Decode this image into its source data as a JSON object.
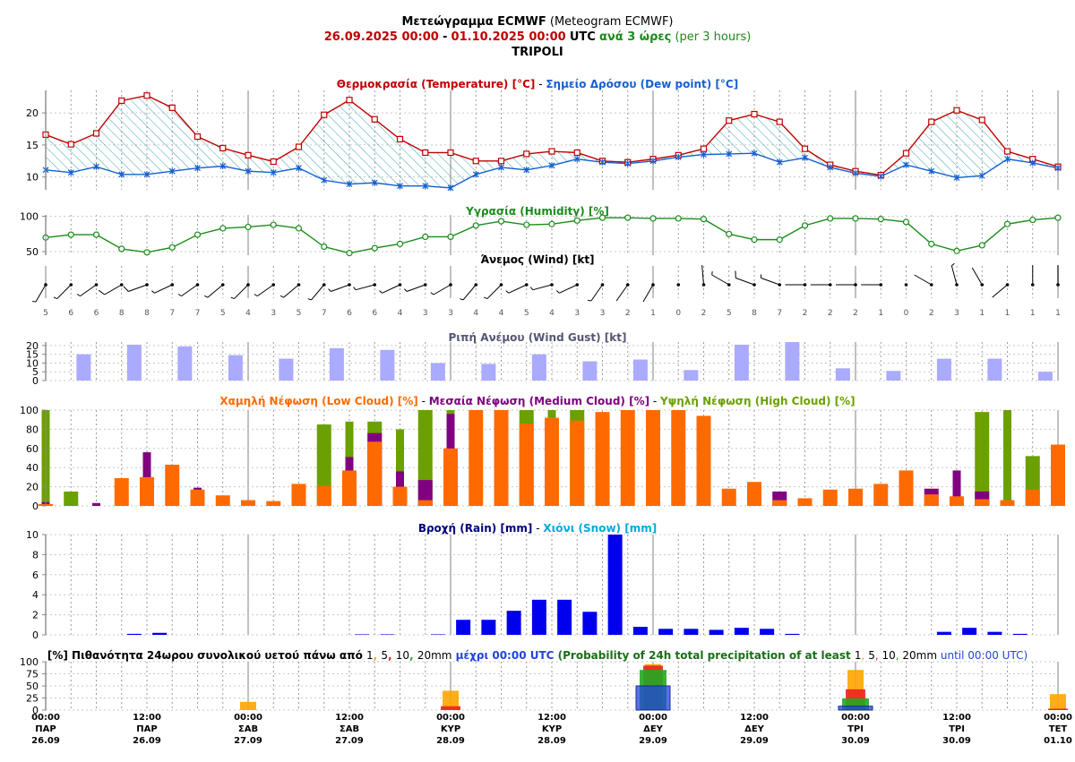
{
  "header": {
    "title_greek": "Μετεώγραμμα ECMWF",
    "title_en": "(Meteogram ECMWF)",
    "date_start": "26.09.2025 00:00",
    "date_sep": "-",
    "date_end": "01.10.2025 00:00",
    "utc": "UTC",
    "step_greek": "ανά 3 ώρες",
    "step_en": "(per 3 hours)",
    "location": "TRIPOLI"
  },
  "colors": {
    "temp": "#c00000",
    "dew": "#1560d0",
    "hum": "#1a8c1a",
    "gust": "#aaaaff",
    "low": "#ff6a00",
    "med": "#800080",
    "high": "#6aa000",
    "rain": "#0000ee",
    "snow": "#00aadd",
    "p1": "#ffa500",
    "p5": "#ee2222",
    "p10": "#22aa22",
    "p20": "#2244dd"
  },
  "chart_data": [
    {
      "type": "line",
      "title_parts": [
        "Θερμοκρασία (Temperature) [°C]",
        " - ",
        "Σημείο Δρόσου (Dew point) [°C]"
      ],
      "yticks": [
        10,
        15,
        20
      ],
      "ylim": [
        8,
        23.5
      ],
      "series": [
        {
          "name": "Θερμοκρασία (Temperature) [°C]",
          "values": [
            16.6,
            15.1,
            16.8,
            21.9,
            22.7,
            20.8,
            16.3,
            14.5,
            13.4,
            12.4,
            14.7,
            19.7,
            22.0,
            19.0,
            15.9,
            13.8,
            13.8,
            12.5,
            12.5,
            13.6,
            14.0,
            13.8,
            12.5,
            12.3,
            12.8,
            13.4,
            14.4,
            18.8,
            19.8,
            18.6,
            14.4,
            11.9,
            10.9,
            10.3,
            13.7,
            18.6,
            20.4,
            18.9,
            14.0,
            12.8,
            11.6
          ]
        },
        {
          "name": "Σημείο Δρόσου (Dew point) [°C]",
          "values": [
            11.1,
            10.7,
            11.6,
            10.4,
            10.4,
            10.9,
            11.4,
            11.7,
            10.9,
            10.7,
            11.4,
            9.5,
            8.9,
            9.1,
            8.6,
            8.6,
            8.3,
            10.4,
            11.5,
            11.1,
            11.8,
            12.8,
            12.3,
            12.1,
            12.5,
            13.1,
            13.5,
            13.6,
            13.7,
            12.3,
            13.0,
            11.5,
            10.6,
            10.1,
            11.9,
            10.9,
            9.9,
            10.2,
            12.8,
            12.2,
            11.4
          ]
        }
      ]
    },
    {
      "type": "line",
      "title": "Υγρασία (Humidity) [%]",
      "yticks": [
        50,
        100
      ],
      "ylim": [
        45,
        102
      ],
      "values": [
        70,
        74,
        74,
        54,
        49,
        56,
        74,
        83,
        85,
        88,
        83,
        57,
        48,
        55,
        61,
        71,
        71,
        87,
        93,
        88,
        89,
        94,
        98,
        98,
        97,
        97,
        96,
        75,
        67,
        67,
        87,
        97,
        97,
        96,
        92,
        61,
        51,
        59,
        89,
        95,
        98
      ]
    },
    {
      "type": "table",
      "title": "Άνεμος (Wind) [kt]",
      "speeds": [
        5,
        6,
        6,
        8,
        8,
        7,
        7,
        5,
        4,
        3,
        5,
        7,
        6,
        6,
        4,
        3,
        3,
        4,
        4,
        5,
        4,
        3,
        3,
        2,
        1,
        0,
        2,
        5,
        8,
        7,
        2,
        2,
        2,
        1,
        0,
        2,
        3,
        1,
        1,
        1,
        1
      ],
      "directions": [
        210,
        225,
        235,
        240,
        250,
        245,
        235,
        230,
        225,
        235,
        230,
        220,
        250,
        255,
        245,
        250,
        240,
        220,
        225,
        245,
        255,
        245,
        215,
        215,
        210,
        0,
        355,
        300,
        290,
        290,
        270,
        270,
        270,
        270,
        0,
        300,
        345,
        330,
        230,
        0,
        0
      ]
    },
    {
      "type": "bar",
      "title": "Ριπή Ανέμου (Wind Gust) [kt]",
      "yticks": [
        0,
        5,
        10,
        15,
        20
      ],
      "ylim": [
        0,
        22
      ],
      "values": [
        0,
        15,
        0,
        20.5,
        0,
        19.5,
        0,
        14.5,
        0,
        12.5,
        0,
        18.5,
        0,
        17.5,
        0,
        10,
        0,
        9.5,
        0,
        15,
        0,
        11,
        0,
        12,
        0,
        6,
        0,
        20.5,
        0,
        22,
        0,
        7,
        0,
        5.5,
        0,
        12.5,
        0,
        12.5,
        0,
        5
      ]
    },
    {
      "type": "bar",
      "title_parts": [
        "Χαμηλή Νέφωση (Low Cloud) [%]",
        " - ",
        "Μεσαία Νέφωση (Medium Cloud) [%]",
        " - ",
        "Υψηλή Νέφωση (High Cloud) [%]"
      ],
      "yticks": [
        0,
        20,
        40,
        60,
        80,
        100
      ],
      "ylim": [
        0,
        100
      ],
      "series": [
        {
          "name": "Χαμηλή Νέφωση (Low Cloud) [%]",
          "values": [
            2,
            0,
            0,
            29,
            30,
            43,
            17,
            11,
            6,
            5,
            23,
            21,
            37,
            67,
            20,
            6,
            60,
            100,
            100,
            86,
            92,
            89,
            98,
            100,
            100,
            100,
            94,
            18,
            25,
            6,
            8,
            17,
            18,
            23,
            37,
            12,
            10,
            7,
            6,
            17,
            64
          ]
        },
        {
          "name": "Μεσαία Νέφωση (Medium Cloud) [%]",
          "values": [
            4,
            0,
            3,
            0,
            56,
            0,
            19,
            0,
            0,
            0,
            0,
            0,
            51,
            76,
            36,
            27,
            96,
            0,
            0,
            0,
            0,
            0,
            0,
            0,
            0,
            0,
            0,
            0,
            0,
            15,
            0,
            0,
            0,
            0,
            0,
            18,
            37,
            15,
            0,
            0,
            0
          ]
        },
        {
          "name": "Υψηλή Νέφωση (High Cloud) [%]",
          "values": [
            100,
            15,
            0,
            0,
            0,
            0,
            0,
            0,
            0,
            0,
            0,
            85,
            88,
            88,
            80,
            100,
            100,
            0,
            100,
            100,
            100,
            100,
            0,
            0,
            0,
            0,
            0,
            0,
            0,
            0,
            0,
            0,
            0,
            0,
            0,
            0,
            0,
            98,
            100,
            52,
            0
          ]
        }
      ]
    },
    {
      "type": "bar",
      "title_parts": [
        "Βροχή (Rain) [mm]",
        " - ",
        "Χιόνι (Snow) [mm]"
      ],
      "yticks": [
        0,
        2,
        4,
        6,
        8,
        10
      ],
      "ylim": [
        0,
        10
      ],
      "series": [
        {
          "name": "Βροχή (Rain) [mm]",
          "values": [
            0,
            0,
            0,
            0.1,
            0.2,
            0,
            0,
            0,
            0,
            0,
            0,
            0,
            0.05,
            0.05,
            0,
            0.05,
            1.5,
            1.5,
            2.4,
            3.5,
            3.5,
            2.3,
            10,
            0.8,
            0.6,
            0.6,
            0.5,
            0.7,
            0.6,
            0.1,
            0,
            0,
            0,
            0,
            0,
            0.3,
            0.7,
            0.3,
            0.1,
            0
          ]
        },
        {
          "name": "Χιόνι (Snow) [mm]",
          "values": []
        }
      ]
    },
    {
      "type": "bar",
      "title_parts": [
        "[%] Πιθανότητα 24ωρου συνολικού υετού πάνω από ",
        "1",
        ", ",
        "5",
        ", ",
        "10",
        ", ",
        "20mm",
        " μέχρι 00:00 UTC",
        " (Probability of 24h total precipitation of at least ",
        "1",
        ", ",
        "5",
        ", ",
        "10",
        ", ",
        "20mm",
        " until 00:00 UTC)"
      ],
      "yticks": [
        0,
        25,
        50,
        75,
        100
      ],
      "ylim": [
        0,
        100
      ],
      "categories": [
        "27.09",
        "28.09",
        "29.09",
        "30.09",
        "01.10"
      ],
      "series": [
        {
          "name": "1",
          "values": [
            17,
            40,
            95,
            83,
            33
          ]
        },
        {
          "name": "5",
          "values": [
            0,
            8,
            92,
            43,
            3
          ]
        },
        {
          "name": "10",
          "values": [
            0,
            0,
            83,
            24,
            0
          ]
        },
        {
          "name": "20mm",
          "values": [
            0,
            0,
            50,
            8,
            0
          ]
        }
      ]
    }
  ],
  "xaxis": {
    "labels": [
      {
        "time": "00:00",
        "day": "ΠΑΡ",
        "date": "26.09"
      },
      {
        "time": "12:00",
        "day": "ΠΑΡ",
        "date": "26.09"
      },
      {
        "time": "00:00",
        "day": "ΣΑΒ",
        "date": "27.09"
      },
      {
        "time": "12:00",
        "day": "ΣΑΒ",
        "date": "27.09"
      },
      {
        "time": "00:00",
        "day": "ΚΥΡ",
        "date": "28.09"
      },
      {
        "time": "12:00",
        "day": "ΚΥΡ",
        "date": "28.09"
      },
      {
        "time": "00:00",
        "day": "ΔΕΥ",
        "date": "29.09"
      },
      {
        "time": "12:00",
        "day": "ΔΕΥ",
        "date": "29.09"
      },
      {
        "time": "00:00",
        "day": "ΤΡΙ",
        "date": "30.09"
      },
      {
        "time": "12:00",
        "day": "ΤΡΙ",
        "date": "30.09"
      },
      {
        "time": "00:00",
        "day": "ΤΕΤ",
        "date": "01.10"
      }
    ]
  }
}
